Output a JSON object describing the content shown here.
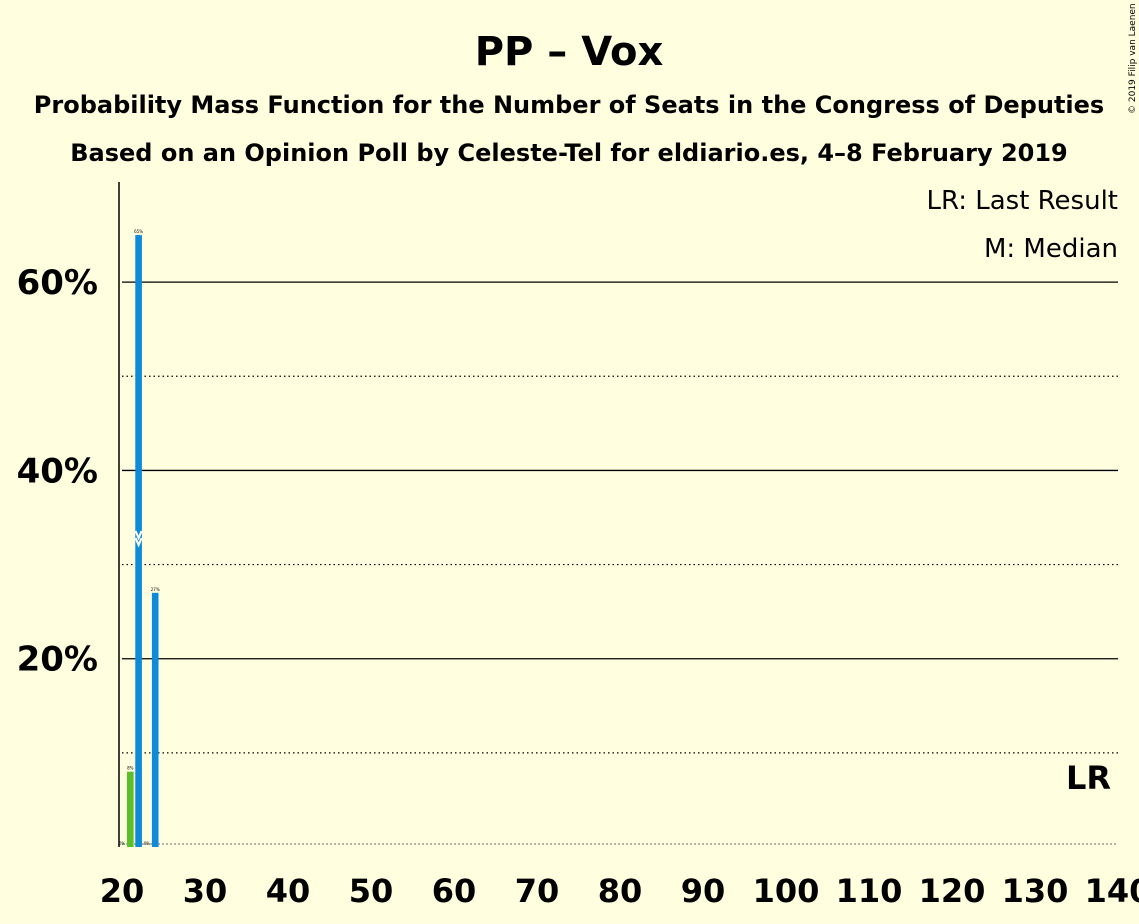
{
  "chart_data": {
    "type": "bar",
    "title": "PP – Vox",
    "subtitle": "Probability Mass Function for the Number of Seats in the Congress of Deputies",
    "subtitle2": "Based on an Opinion Poll by Celeste-Tel for eldiario.es, 4–8 February 2019",
    "copyright": "© 2019 Filip van Laenen",
    "legend": [
      "LR: Last Result",
      "M: Median"
    ],
    "last_result_label": "LR",
    "median_marker": "M",
    "xlim": [
      20,
      140
    ],
    "ylim": [
      0,
      70
    ],
    "x_ticks": [
      20,
      30,
      40,
      50,
      60,
      70,
      80,
      90,
      100,
      110,
      120,
      130,
      140
    ],
    "y_ticks": [
      {
        "value": 20,
        "label": "20%"
      },
      {
        "value": 40,
        "label": "40%"
      },
      {
        "value": 60,
        "label": "60%"
      }
    ],
    "minor_gridlines": [
      10,
      30,
      50
    ],
    "last_result_seats": 137,
    "median_seats": 22,
    "bars": [
      {
        "seats": 20,
        "value": 0,
        "label": "0%",
        "color": "#1E90FF"
      },
      {
        "seats": 21,
        "value": 8,
        "label": "8%",
        "color": "#5CBF2A"
      },
      {
        "seats": 22,
        "value": 65,
        "label": "65%",
        "color": "#0D8BD9"
      },
      {
        "seats": 23,
        "value": 0,
        "label": "0%",
        "color": "#1E90FF"
      },
      {
        "seats": 24,
        "value": 27,
        "label": "27%",
        "color": "#0D8BD9"
      }
    ],
    "colors": {
      "background": "#FFFFE0",
      "primary_bar": "#0D8BD9",
      "last_result_bar": "#5CBF2A"
    }
  }
}
